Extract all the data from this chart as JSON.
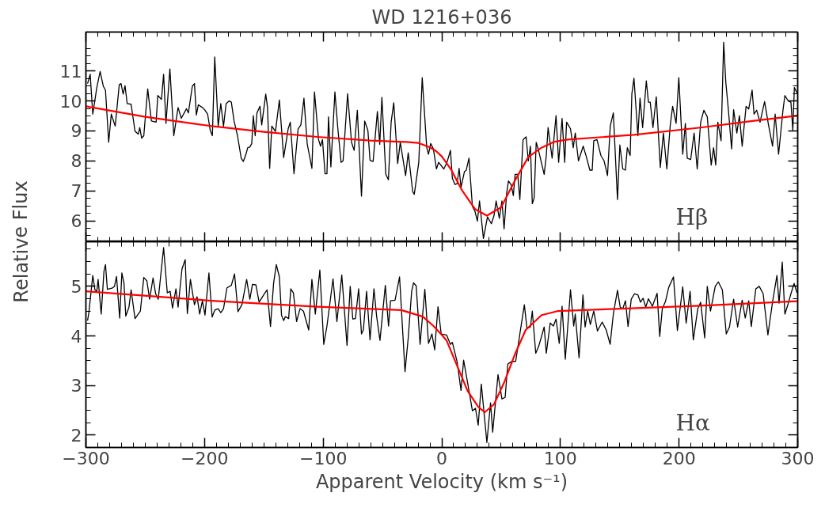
{
  "chart_data": [
    {
      "type": "line",
      "title": "WD 1216+036",
      "ylabel": "Relative Flux",
      "annotations": [
        "Hβ"
      ],
      "xlim": [
        -300,
        300
      ],
      "xticks": [
        -300,
        -200,
        -100,
        0,
        100,
        200,
        300
      ],
      "ylim": [
        5.3,
        12.3
      ],
      "yticks": [
        6,
        7,
        8,
        9,
        10,
        11
      ],
      "tick_labels": "y",
      "grid": false,
      "series": [
        {
          "color": "#000000",
          "x": [
            -298.6,
            -296.4,
            -294.2,
            -290.8,
            -288.0,
            -285.3,
            -283.5,
            -280.8,
            -278.6,
            -275.3,
            -271.9,
            -270.4,
            -268.6,
            -267.0,
            -265.2,
            -261.9,
            -258.6,
            -255.9,
            -254.6,
            -253.0,
            -251.2,
            -247.9,
            -244.8,
            -240.8,
            -239.4,
            -236.3,
            -234.5,
            -232.5,
            -229.2,
            -225.9,
            -222.3,
            -219.6,
            -215.2,
            -213.6,
            -210.3,
            -208.5,
            -206.9,
            -205.2,
            -201.8,
            -199.6,
            -197.4,
            -195.2,
            -193.4,
            -191.4,
            -188.5,
            -186.3,
            -184.0,
            -181.8,
            -179.2,
            -177.4,
            -175.1,
            -172.2,
            -169.1,
            -167.3,
            -165.1,
            -163.6,
            -161.8,
            -160.2,
            -158.9,
            -157.3,
            -155.8,
            -153.3,
            -151.8,
            -148.4,
            -146.9,
            -145.1,
            -143.3,
            -140.2,
            -136.9,
            -133.3,
            -129.5,
            -127.7,
            -124.6,
            -121.1,
            -118.8,
            -116.2,
            -113.5,
            -109.5,
            -107.3,
            -103.9,
            -102.2,
            -100.6,
            -98.4,
            -96.8,
            -95.5,
            -93.5,
            -90.1,
            -87.7,
            -84.9,
            -83.2,
            -79.4,
            -76.1,
            -73.9,
            -71.2,
            -67.7,
            -65.0,
            -62.3,
            -60.5,
            -57.9,
            -54.3,
            -52.3,
            -50.5,
            -47.2,
            -45.0,
            -42.7,
            -40.5,
            -37.2,
            -35.0,
            -30.5,
            -28.3,
            -24.5,
            -23.2,
            -19.4,
            -16.5,
            -12.7,
            -11.2,
            -9.4,
            -7.1,
            -4.5,
            -2.7,
            1.7,
            4.4,
            7.3,
            8.9,
            11.1,
            12.9,
            14.6,
            16.2,
            19.1,
            20.6,
            22.9,
            25.8,
            28.0,
            30.0,
            31.8,
            35.1,
            38.5,
            41.8,
            44.0,
            45.8,
            48.5,
            50.7,
            52.5,
            54.7,
            56.2,
            58.5,
            60.3,
            61.8,
            64.0,
            65.8,
            68.5,
            71.1,
            72.9,
            74.7,
            76.3,
            77.8,
            79.6,
            81.8,
            86.3,
            88.1,
            89.6,
            93.0,
            96.3,
            98.5,
            101.4,
            103.6,
            105.2,
            108.5,
            110.8,
            112.5,
            115.2,
            119.2,
            121.9,
            124.8,
            126.8,
            128.1,
            130.8,
            134.1,
            136.8,
            139.7,
            142.0,
            144.6,
            148.1,
            150.1,
            152.6,
            154.8,
            156.4,
            158.8,
            160.2,
            162.0,
            165.3,
            167.1,
            169.3,
            172.4,
            174.2,
            175.7,
            178.0,
            180.8,
            184.2,
            186.8,
            189.7,
            192.6,
            194.6,
            197.5,
            199.8,
            203.1,
            205.3,
            206.9,
            209.8,
            212.7,
            215.3,
            218.2,
            220.9,
            223.8,
            227.1,
            229.1,
            230.9,
            232.7,
            235.4,
            237.6,
            239.4,
            241.6,
            244.3,
            246.0,
            248.7,
            250.9,
            253.2,
            256.5,
            258.7,
            261.6,
            263.2,
            265.4,
            268.3,
            272.1,
            275.4,
            278.8,
            281.0,
            283.9,
            287.6,
            289.2,
            292.1,
            294.3,
            295.9,
            297.2,
            299.4
          ],
          "values": [
            10.58,
            10.89,
            9.56,
            10.45,
            10.98,
            10.49,
            10.36,
            8.62,
            9.56,
            9.16,
            10.54,
            10.58,
            10.23,
            10.51,
            9.91,
            9.89,
            8.99,
            8.89,
            9.11,
            8.76,
            8.84,
            10.4,
            9.33,
            9.29,
            10.18,
            10.05,
            10.89,
            9.25,
            11.07,
            8.84,
            9.78,
            9.42,
            9.74,
            9.6,
            10.49,
            10.58,
            9.53,
            9.87,
            9.78,
            9.69,
            9.56,
            9.02,
            8.84,
            11.47,
            9.16,
            9.91,
            9.16,
            9.91,
            10.0,
            9.96,
            9.33,
            8.84,
            8.09,
            7.98,
            8.22,
            8.44,
            8.46,
            8.58,
            9.51,
            8.84,
            9.6,
            9.82,
            9.2,
            10.23,
            9.78,
            7.75,
            9.16,
            8.98,
            10.03,
            8.11,
            9.07,
            9.29,
            7.57,
            9.07,
            9.2,
            10.09,
            8.58,
            7.75,
            10.3,
            8.71,
            8.49,
            8.71,
            7.57,
            7.57,
            9.47,
            7.8,
            10.3,
            9.11,
            7.95,
            8.0,
            10.24,
            8.62,
            8.35,
            9.69,
            6.82,
            9.33,
            9.02,
            8.02,
            7.98,
            9.65,
            8.55,
            10.12,
            7.55,
            7.37,
            9.29,
            9.94,
            7.91,
            8.62,
            7.51,
            8.27,
            6.97,
            6.88,
            7.95,
            10.78,
            8.44,
            8.22,
            8.58,
            8.4,
            7.73,
            7.95,
            7.73,
            7.95,
            8.35,
            7.42,
            7.21,
            7.24,
            7.75,
            7.11,
            7.64,
            7.69,
            8.09,
            6.48,
            6.31,
            5.99,
            6.66,
            5.41,
            6.13,
            5.9,
            6.17,
            6.66,
            6.08,
            6.66,
            5.73,
            6.93,
            7.33,
            7.2,
            6.84,
            7.55,
            7.55,
            6.71,
            8.71,
            8.8,
            8.0,
            8.49,
            6.57,
            6.75,
            8.62,
            8.31,
            7.55,
            8.18,
            9.11,
            8.09,
            9.51,
            7.95,
            9.42,
            7.95,
            9.29,
            9.07,
            8.44,
            8.93,
            8.0,
            8.49,
            8.13,
            7.69,
            7.69,
            8.67,
            8.71,
            8.18,
            8.0,
            7.51,
            9.16,
            9.6,
            6.71,
            8.53,
            7.73,
            7.69,
            8.44,
            8.18,
            10.23,
            10.76,
            8.84,
            10.09,
            9.11,
            10.67,
            9.96,
            9.96,
            9.11,
            10.14,
            7.78,
            8.93,
            7.73,
            9.2,
            9.82,
            9.25,
            10.78,
            8.22,
            9.25,
            8.09,
            8.04,
            8.93,
            7.73,
            9.29,
            9.69,
            9.47,
            7.86,
            8.44,
            7.86,
            9.29,
            8.67,
            11.96,
            10.63,
            9.69,
            8.4,
            9.71,
            8.93,
            9.51,
            8.49,
            9.82,
            9.73,
            10.36,
            9.56,
            9.69,
            9.29,
            9.98,
            9.2,
            8.49,
            9.56,
            8.22,
            9.69,
            10.18,
            10.0,
            9.96,
            9.02,
            10.45,
            10.27
          ]
        },
        {
          "color": "#ff0000",
          "x": [
            -300,
            -250,
            -194,
            -150,
            -105,
            -60,
            -30,
            -20,
            -10,
            -5,
            0,
            8,
            17,
            28,
            38,
            50,
            62,
            73,
            84,
            95,
            106,
            162,
            218,
            262,
            300
          ],
          "values": [
            9.82,
            9.47,
            9.16,
            8.97,
            8.8,
            8.68,
            8.63,
            8.6,
            8.45,
            8.33,
            8.15,
            7.7,
            7.02,
            6.39,
            6.17,
            6.45,
            7.37,
            8.13,
            8.44,
            8.64,
            8.71,
            8.87,
            9.11,
            9.33,
            9.51
          ]
        }
      ]
    },
    {
      "type": "line",
      "xlabel": "Apparent Velocity (km s⁻¹)",
      "annotations": [
        "Hα"
      ],
      "xlim": [
        -300,
        300
      ],
      "xticks": [
        -300,
        -200,
        -100,
        0,
        100,
        200,
        300
      ],
      "ylim": [
        1.75,
        5.9
      ],
      "yticks": [
        2,
        3,
        4,
        5
      ],
      "grid": false,
      "series": [
        {
          "color": "#000000",
          "x": [
            -298.6,
            -297.5,
            -294.2,
            -292.4,
            -290.8,
            -289.7,
            -287.1,
            -284.8,
            -283.5,
            -281.9,
            -277.5,
            -275.9,
            -274.2,
            -271.5,
            -269.7,
            -267.9,
            -266.4,
            -263.7,
            -261.9,
            -258.6,
            -254.1,
            -251.2,
            -248.6,
            -246.3,
            -243.4,
            -241.2,
            -239.0,
            -234.5,
            -231.4,
            -229.0,
            -227.0,
            -224.1,
            -222.3,
            -219.0,
            -216.3,
            -214.5,
            -211.9,
            -208.5,
            -206.3,
            -204.1,
            -201.8,
            -199.6,
            -196.3,
            -193.6,
            -191.4,
            -188.5,
            -186.3,
            -184.0,
            -181.1,
            -177.4,
            -174.7,
            -171.8,
            -168.5,
            -164.5,
            -161.8,
            -159.6,
            -156.7,
            -154.0,
            -149.6,
            -147.3,
            -144.4,
            -141.8,
            -139.5,
            -136.9,
            -135.1,
            -133.3,
            -131.8,
            -129.1,
            -127.3,
            -125.1,
            -122.4,
            -119.5,
            -116.6,
            -112.2,
            -109.5,
            -106.6,
            -102.8,
            -99.5,
            -96.8,
            -91.7,
            -88.4,
            -84.3,
            -79.9,
            -77.2,
            -75.0,
            -72.8,
            -70.1,
            -67.7,
            -66.1,
            -63.4,
            -60.5,
            -57.2,
            -54.9,
            -52.1,
            -47.6,
            -44.9,
            -43.2,
            -39.4,
            -35.6,
            -31.0,
            -28.3,
            -25.4,
            -23.8,
            -21.6,
            -18.3,
            -14.3,
            -11.2,
            -8.3,
            -6.0,
            -3.2,
            -0.5,
            4.0,
            7.3,
            8.9,
            12.9,
            16.2,
            18.4,
            21.8,
            25.8,
            28.4,
            30.7,
            33.3,
            38.0,
            41.1,
            42.9,
            47.4,
            50.7,
            53.4,
            55.6,
            58.5,
            62.3,
            65.8,
            69.6,
            71.8,
            74.7,
            76.3,
            79.2,
            81.8,
            86.3,
            88.1,
            91.4,
            94.1,
            96.3,
            99.0,
            101.4,
            104.1,
            108.5,
            111.2,
            112.5,
            115.7,
            119.0,
            120.8,
            123.0,
            125.2,
            128.1,
            131.2,
            135.2,
            138.6,
            141.9,
            144.6,
            148.1,
            150.4,
            152.6,
            154.8,
            157.0,
            159.7,
            162.4,
            165.3,
            167.5,
            169.7,
            171.9,
            174.2,
            177.5,
            181.5,
            183.7,
            185.9,
            188.6,
            191.3,
            195.3,
            198.6,
            203.1,
            206.0,
            209.3,
            212.0,
            215.8,
            218.2,
            221.6,
            223.8,
            226.5,
            230.5,
            233.1,
            236.5,
            239.8,
            242.5,
            246.0,
            249.4,
            253.2,
            255.8,
            258.7,
            260.9,
            264.7,
            267.6,
            270.9,
            274.9,
            278.8,
            282.5,
            284.3,
            287.0,
            289.2,
            292.1,
            294.3,
            297.0,
            299.4
          ],
          "values": [
            4.31,
            4.47,
            5.22,
            4.93,
            4.9,
            5.14,
            4.44,
            5.3,
            5.44,
            4.94,
            4.97,
            5.0,
            5.2,
            4.36,
            5.27,
            5.06,
            4.4,
            4.58,
            4.93,
            4.35,
            4.5,
            5.18,
            5.11,
            4.74,
            5.17,
            4.85,
            4.74,
            5.78,
            4.87,
            4.9,
            4.56,
            4.95,
            4.58,
            5.35,
            5.54,
            4.45,
            5.14,
            4.63,
            4.79,
            4.44,
            4.71,
            4.42,
            5.27,
            4.38,
            4.52,
            4.55,
            4.47,
            4.55,
            4.97,
            5.02,
            5.25,
            4.49,
            4.63,
            5.14,
            4.74,
            5.04,
            5.03,
            4.68,
            4.85,
            4.93,
            4.19,
            5.06,
            5.44,
            5.19,
            4.42,
            4.31,
            4.39,
            4.35,
            4.95,
            4.87,
            4.29,
            4.55,
            4.5,
            4.12,
            5.14,
            4.44,
            5.33,
            3.83,
            4.2,
            5.15,
            4.29,
            5.23,
            3.81,
            5.0,
            4.34,
            4.35,
            4.95,
            4.04,
            4.12,
            4.9,
            3.92,
            4.95,
            4.39,
            3.91,
            5.02,
            4.2,
            4.71,
            4.72,
            5.19,
            3.28,
            3.96,
            4.9,
            5.07,
            5.01,
            3.83,
            4.94,
            3.85,
            4.04,
            3.72,
            4.59,
            4.04,
            4.02,
            3.83,
            3.87,
            3.48,
            2.9,
            3.51,
            3.05,
            2.49,
            2.54,
            2.2,
            3.03,
            1.85,
            2.65,
            2.06,
            3.22,
            2.73,
            2.76,
            3.43,
            3.48,
            3.49,
            4.04,
            4.63,
            4.15,
            4.18,
            4.5,
            3.65,
            3.8,
            4.18,
            3.65,
            4.26,
            4.2,
            4.34,
            3.85,
            4.6,
            3.53,
            4.93,
            4.2,
            4.44,
            3.56,
            4.83,
            4.18,
            4.5,
            4.23,
            4.5,
            4.1,
            4.28,
            4.12,
            3.83,
            4.44,
            4.92,
            4.58,
            4.55,
            4.71,
            4.19,
            4.74,
            4.85,
            4.83,
            4.68,
            4.76,
            4.58,
            4.75,
            4.6,
            4.86,
            3.99,
            4.55,
            4.7,
            4.98,
            5.19,
            4.11,
            4.99,
            4.26,
            4.9,
            3.92,
            4.55,
            4.68,
            3.96,
            5.0,
            4.5,
            5.0,
            5.09,
            4.93,
            4.04,
            4.18,
            4.74,
            4.18,
            4.72,
            4.36,
            4.71,
            4.19,
            4.95,
            5.0,
            4.85,
            4.02,
            4.68,
            5.22,
            4.66,
            5.49,
            4.44,
            4.66,
            4.85,
            5.06,
            4.87
          ]
        },
        {
          "color": "#ff0000",
          "x": [
            -300,
            -194,
            -105,
            -34,
            -16,
            -7,
            0,
            4,
            12.9,
            21.8,
            30.7,
            36.2,
            44,
            52.9,
            61.8,
            70.7,
            84.1,
            97.4,
            150.8,
            217.6,
            300
          ],
          "values": [
            4.9,
            4.71,
            4.59,
            4.52,
            4.39,
            4.2,
            4.02,
            3.91,
            3.4,
            2.89,
            2.57,
            2.46,
            2.62,
            3.08,
            3.64,
            4.12,
            4.42,
            4.5,
            4.55,
            4.61,
            4.7
          ]
        }
      ]
    }
  ]
}
